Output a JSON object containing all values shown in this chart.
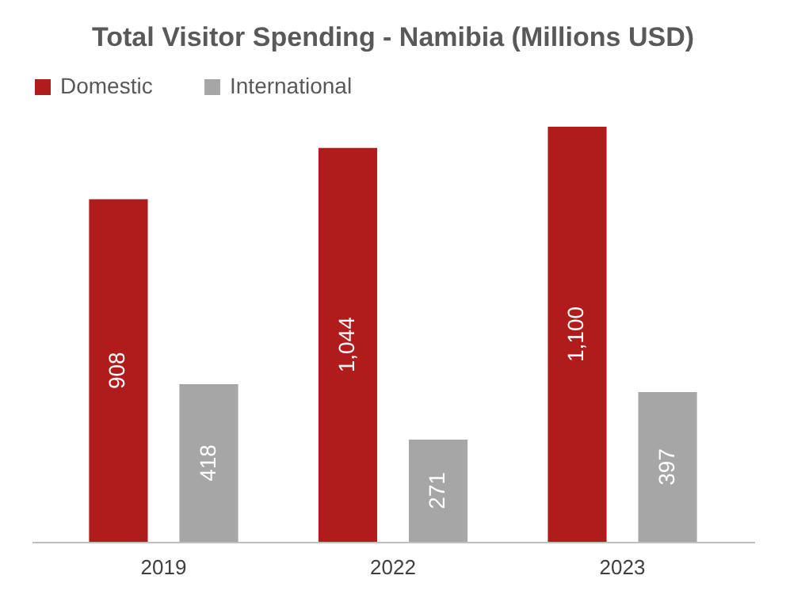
{
  "chart_data": {
    "type": "bar",
    "title": "Total Visitor Spending - Namibia (Millions USD)",
    "categories": [
      "2019",
      "2022",
      "2023"
    ],
    "series": [
      {
        "name": "Domestic",
        "color": "#b01c1c",
        "values": [
          908,
          1044,
          1100
        ],
        "value_labels": [
          "908",
          "1,044",
          "1,100"
        ]
      },
      {
        "name": "International",
        "color": "#a6a6a6",
        "values": [
          418,
          271,
          397
        ],
        "value_labels": [
          "418",
          "271",
          "397"
        ]
      }
    ],
    "legend": "top",
    "grid": false
  }
}
